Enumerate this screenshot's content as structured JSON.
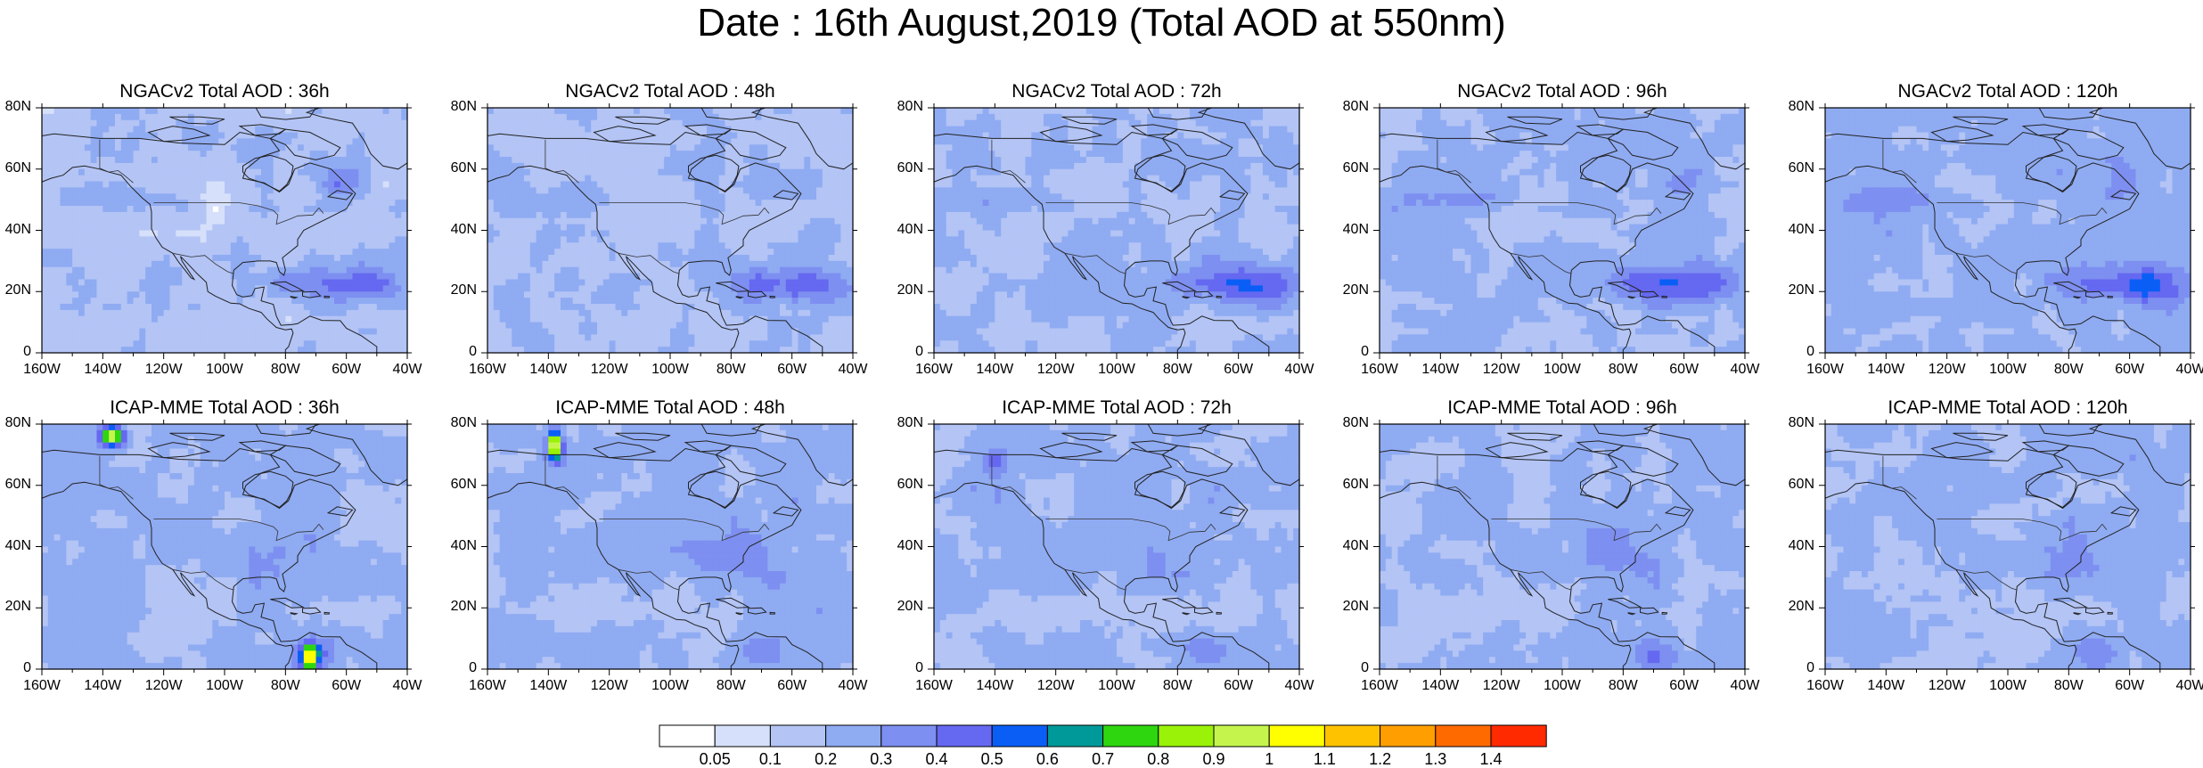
{
  "title": "Date : 16th August,2019 (Total AOD at 550nm)",
  "chart_data": {
    "type": "heatmap",
    "grid": false,
    "panels": [
      {
        "row": 1,
        "col": 1,
        "title": "NGACv2 Total AOD : 36h"
      },
      {
        "row": 1,
        "col": 2,
        "title": "NGACv2 Total AOD : 48h"
      },
      {
        "row": 1,
        "col": 3,
        "title": "NGACv2 Total AOD : 72h"
      },
      {
        "row": 1,
        "col": 4,
        "title": "NGACv2 Total AOD : 96h"
      },
      {
        "row": 1,
        "col": 5,
        "title": "NGACv2 Total AOD : 120h"
      },
      {
        "row": 2,
        "col": 1,
        "title": "ICAP-MME Total AOD : 36h"
      },
      {
        "row": 2,
        "col": 2,
        "title": "ICAP-MME Total AOD : 48h"
      },
      {
        "row": 2,
        "col": 3,
        "title": "ICAP-MME Total AOD : 72h"
      },
      {
        "row": 2,
        "col": 4,
        "title": "ICAP-MME Total AOD : 96h"
      },
      {
        "row": 2,
        "col": 5,
        "title": "ICAP-MME Total AOD : 120h"
      }
    ],
    "x_ticks": [
      "160W",
      "140W",
      "120W",
      "100W",
      "80W",
      "60W",
      "40W"
    ],
    "y_ticks": [
      "80N",
      "60N",
      "40N",
      "20N",
      "0"
    ],
    "xlim": [
      -160,
      -40
    ],
    "ylim": [
      0,
      80
    ],
    "colorbar": {
      "levels": [
        "0.05",
        "0.1",
        "0.2",
        "0.3",
        "0.4",
        "0.5",
        "0.6",
        "0.7",
        "0.8",
        "0.9",
        "1",
        "1.1",
        "1.2",
        "1.3",
        "1.4"
      ],
      "colors": [
        "#ffffff",
        "#d6e0fa",
        "#b3c4f5",
        "#8fabf2",
        "#7d8ff0",
        "#6568f0",
        "#0a5ef6",
        "#009999",
        "#2ed60f",
        "#99f208",
        "#c5f54d",
        "#ffff00",
        "#ffc200",
        "#ff9e00",
        "#ff6a00",
        "#ff2a00"
      ]
    }
  }
}
